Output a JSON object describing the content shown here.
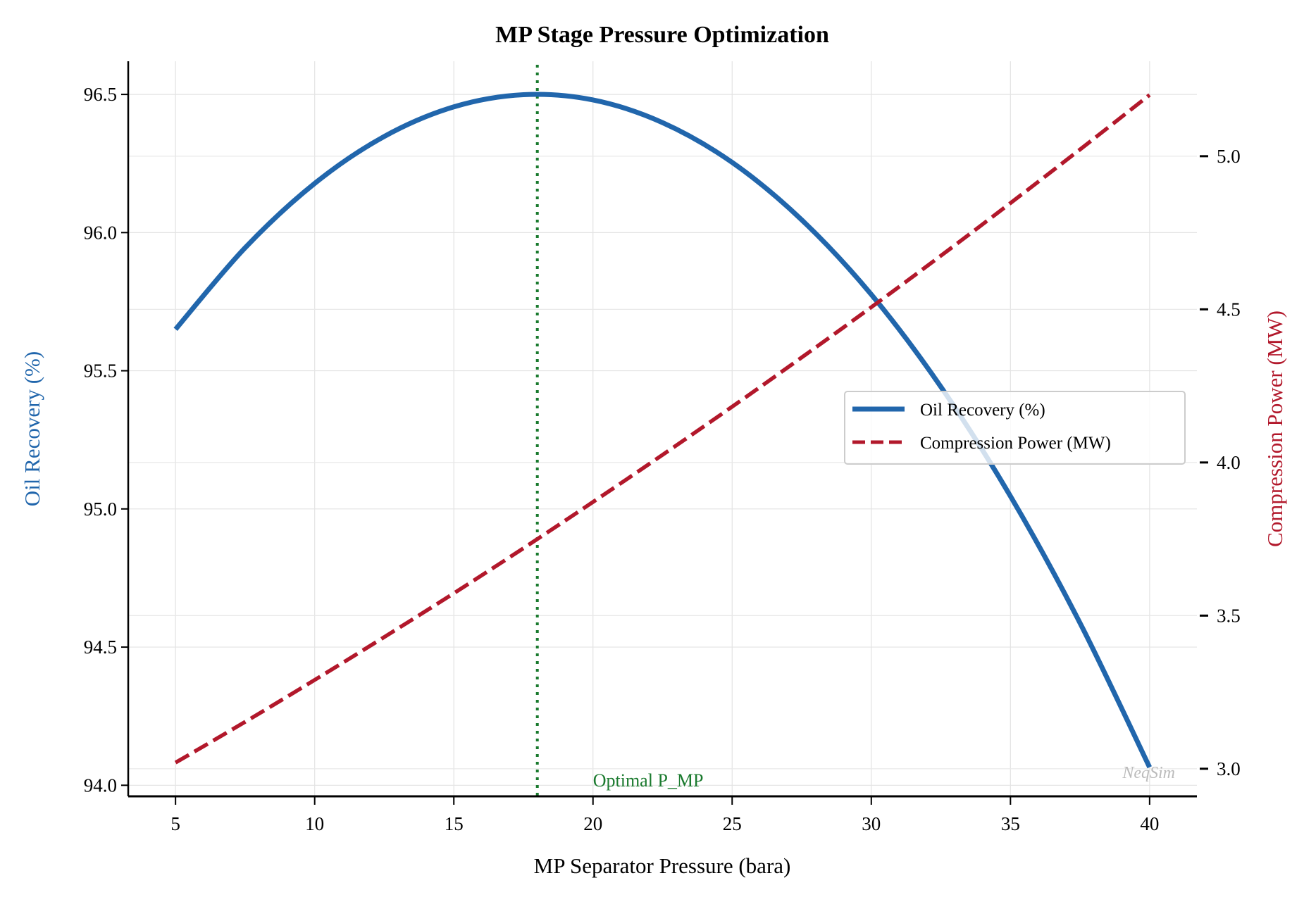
{
  "chart_data": {
    "type": "line",
    "title": "MP Stage Pressure Optimization",
    "xlabel": "MP Separator Pressure (bara)",
    "ylabel_left": "Oil Recovery (%)",
    "ylabel_right": "Compression Power (MW)",
    "xlim": [
      3.3,
      41.7
    ],
    "ylim_left": [
      93.96,
      96.62
    ],
    "ylim_right": [
      2.91,
      5.31
    ],
    "x_ticks": [
      "5",
      "10",
      "15",
      "20",
      "25",
      "30",
      "35",
      "40"
    ],
    "y_left_ticks": [
      "94.0",
      "94.5",
      "95.0",
      "95.5",
      "96.0",
      "96.5"
    ],
    "y_right_ticks": [
      "3.0",
      "3.5",
      "4.0",
      "4.5",
      "5.0"
    ],
    "grid": true,
    "legend_position": "center-right",
    "x": [
      5,
      7.5,
      10,
      12.5,
      15,
      17.5,
      20,
      22.5,
      25,
      27.5,
      30,
      32.5,
      35,
      37.5,
      40
    ],
    "series": [
      {
        "name": "Oil Recovery (%)",
        "axis": "left",
        "style": "solid",
        "color": "#2166ac",
        "values": [
          95.65,
          95.945,
          96.178,
          96.348,
          96.455,
          96.499,
          96.48,
          96.398,
          96.254,
          96.046,
          95.776,
          95.442,
          95.046,
          94.587,
          94.065
        ]
      },
      {
        "name": "Compression Power (MW)",
        "axis": "right",
        "style": "dashed",
        "color": "#b2182b",
        "values": [
          3.02,
          3.153,
          3.29,
          3.43,
          3.573,
          3.72,
          3.871,
          4.025,
          4.182,
          4.343,
          4.507,
          4.675,
          4.847,
          5.022,
          5.2
        ]
      }
    ],
    "annotations": [
      {
        "type": "vline",
        "x": 18,
        "style": "dotted",
        "color": "#1a7a2e",
        "label": "Optimal P_MP"
      }
    ],
    "watermark": "NeqSim"
  }
}
